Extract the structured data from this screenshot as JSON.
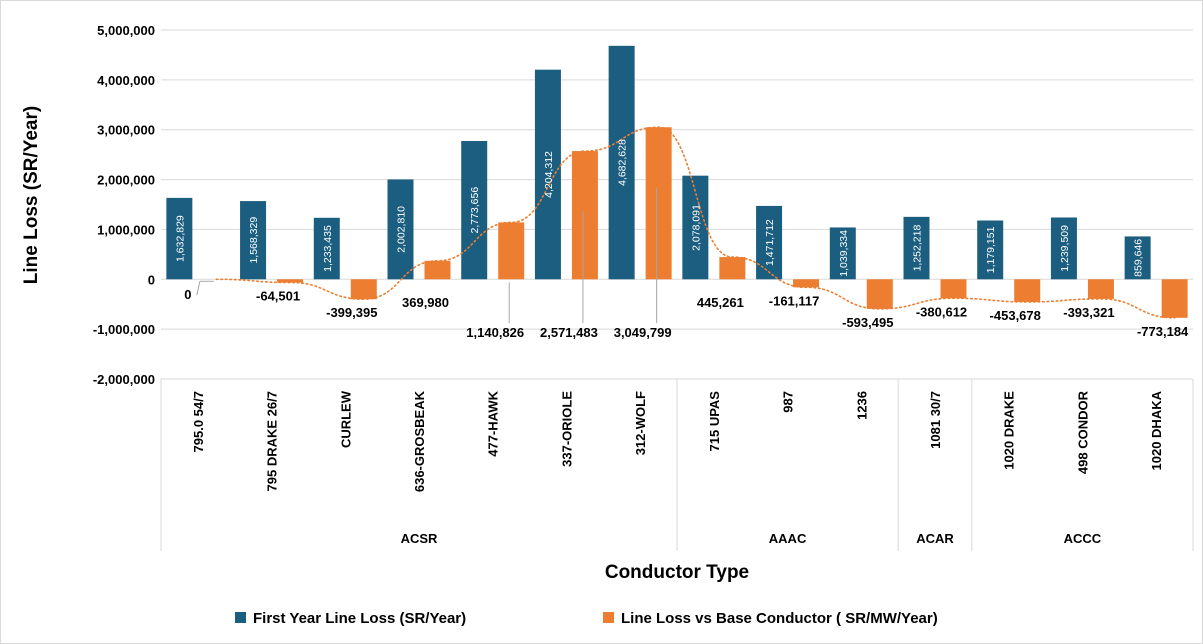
{
  "chart_data": {
    "type": "bar",
    "ylabel": "Line Loss (SR/Year)",
    "xlabel": "Conductor Type",
    "ylim": [
      -2000000,
      5000000
    ],
    "yticks": [
      {
        "value": 5000000,
        "label": "5,000,000"
      },
      {
        "value": 4000000,
        "label": "4,000,000"
      },
      {
        "value": 3000000,
        "label": "3,000,000"
      },
      {
        "value": 2000000,
        "label": "2,000,000"
      },
      {
        "value": 1000000,
        "label": "1,000,000"
      },
      {
        "value": 0,
        "label": "0"
      },
      {
        "value": -1000000,
        "label": "-1,000,000"
      },
      {
        "value": -2000000,
        "label": "-2,000,000"
      }
    ],
    "grid": true,
    "legend_position": "bottom",
    "categories": [
      "795.0 54/7",
      "795 DRAKE 26/7",
      "CURLEW",
      "636-GROSBEAK",
      "477-HAWK",
      "337-ORIOLE",
      "312-WOLF",
      "715 UPAS",
      "987",
      "1236",
      "1081  30/7",
      "1020 DRAKE",
      "498  CONDOR",
      "1020 DHAKA"
    ],
    "groups": [
      {
        "name": "ACSR",
        "count": 7
      },
      {
        "name": "AAAC",
        "count": 3
      },
      {
        "name": "ACAR",
        "count": 1
      },
      {
        "name": "ACCC",
        "count": 3
      }
    ],
    "series": [
      {
        "name": "First Year Line Loss (SR/Year)",
        "color": "#1b5e80",
        "values": [
          1632829,
          1568329,
          1233435,
          2002810,
          2773656,
          4204312,
          4682628,
          2078091,
          1471712,
          1039334,
          1252218,
          1179151,
          1239509,
          859646
        ],
        "labels": [
          "1,632,829",
          "1,568,329",
          "1,233,435",
          "2,002,810",
          "2,773,656",
          "4,204,312",
          "4,682,628",
          "2,078,091",
          "1,471,712",
          "1,039,334",
          "1,252,218",
          "1,179,151",
          "1,239,509",
          "859,646"
        ]
      },
      {
        "name": "Line Loss  vs Base Conductor ( SR/MW/Year)",
        "color": "#ed7d31",
        "values": [
          0,
          -64501,
          -399395,
          369980,
          1140826,
          2571483,
          3049799,
          445261,
          -161117,
          -593495,
          -380612,
          -453678,
          -393321,
          -773184
        ],
        "labels": [
          "0",
          "-64,501",
          "-399,395",
          "369,980",
          "1,140,826",
          "2,571,483",
          "3,049,799",
          "445,261",
          "-161,117",
          "-593,495",
          "-380,612",
          "-453,678",
          "-393,321",
          "-773,184"
        ]
      }
    ],
    "trendline": {
      "series": 1,
      "style": "dotted",
      "color": "#ed7d31"
    }
  }
}
